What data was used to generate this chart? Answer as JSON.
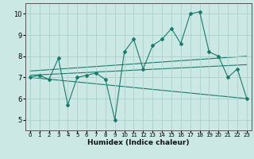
{
  "title": "",
  "xlabel": "Humidex (Indice chaleur)",
  "x": [
    0,
    1,
    2,
    3,
    4,
    5,
    6,
    7,
    8,
    9,
    10,
    11,
    12,
    13,
    14,
    15,
    16,
    17,
    18,
    19,
    20,
    21,
    22,
    23
  ],
  "y_main": [
    7.0,
    7.1,
    6.9,
    7.9,
    5.7,
    7.0,
    7.1,
    7.2,
    6.9,
    5.0,
    8.2,
    8.8,
    7.4,
    8.5,
    8.8,
    9.3,
    8.6,
    10.0,
    10.1,
    8.2,
    8.0,
    7.0,
    7.4,
    6.0
  ],
  "line_color": "#1a7a6e",
  "bg_color": "#cce8e4",
  "grid_color": "#aacfcb",
  "ylim": [
    4.5,
    10.5
  ],
  "xlim": [
    -0.5,
    23.5
  ],
  "yticks": [
    5,
    6,
    7,
    8,
    9,
    10
  ],
  "xticks": [
    0,
    1,
    2,
    3,
    4,
    5,
    6,
    7,
    8,
    9,
    10,
    11,
    12,
    13,
    14,
    15,
    16,
    17,
    18,
    19,
    20,
    21,
    22,
    23
  ],
  "trend1_x": [
    0,
    23
  ],
  "trend1_y": [
    7.1,
    7.6
  ],
  "trend2_x": [
    0,
    23
  ],
  "trend2_y": [
    7.3,
    8.0
  ],
  "trend3_x": [
    0,
    23
  ],
  "trend3_y": [
    7.0,
    6.0
  ]
}
